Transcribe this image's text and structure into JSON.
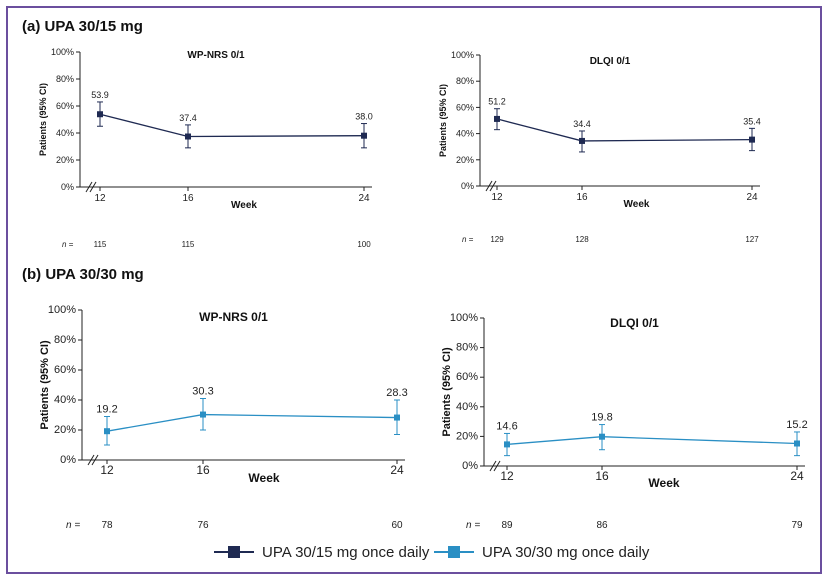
{
  "sections": [
    {
      "label": "(a) UPA 30/15 mg"
    },
    {
      "label": "(b) UPA 30/30 mg"
    }
  ],
  "colors": {
    "dark": "#1f2a52",
    "light": "#2a8fc4",
    "frame": "#6b4f9e"
  },
  "legend": [
    {
      "label": "UPA 30/15 mg once daily",
      "color": "#1f2a52"
    },
    {
      "label": "UPA 30/30 mg once daily",
      "color": "#2a8fc4"
    }
  ],
  "chart_data": [
    {
      "type": "line",
      "title": "WP-NRS 0/1",
      "xlabel": "Week",
      "ylabel": "Patients (95% CI)",
      "categories": [
        "12",
        "16",
        "24"
      ],
      "series": [
        {
          "name": "UPA 30/15 mg once daily",
          "values": [
            53.9,
            37.4,
            38.0
          ],
          "ci_low": [
            45,
            29,
            29
          ],
          "ci_high": [
            63,
            46,
            47
          ],
          "labels": [
            "53.9",
            "37.4",
            "38.0"
          ]
        }
      ],
      "ylim": [
        0,
        100
      ],
      "yticks": [
        "0%",
        "20%",
        "40%",
        "60%",
        "80%",
        "100%"
      ],
      "n_label": "n =",
      "n": [
        "115",
        "115",
        "100"
      ]
    },
    {
      "type": "line",
      "title": "DLQI 0/1",
      "xlabel": "Week",
      "ylabel": "Patients (95% CI)",
      "categories": [
        "12",
        "16",
        "24"
      ],
      "series": [
        {
          "name": "UPA 30/15 mg once daily",
          "values": [
            51.2,
            34.4,
            35.4
          ],
          "ci_low": [
            43,
            26,
            27
          ],
          "ci_high": [
            59,
            42,
            44
          ],
          "labels": [
            "51.2",
            "34.4",
            "35.4"
          ]
        }
      ],
      "ylim": [
        0,
        100
      ],
      "yticks": [
        "0%",
        "20%",
        "40%",
        "60%",
        "80%",
        "100%"
      ],
      "n_label": "n =",
      "n": [
        "129",
        "128",
        "127"
      ]
    },
    {
      "type": "line",
      "title": "WP-NRS 0/1",
      "xlabel": "Week",
      "ylabel": "Patients (95% CI)",
      "categories": [
        "12",
        "16",
        "24"
      ],
      "series": [
        {
          "name": "UPA 30/30 mg once daily",
          "values": [
            19.2,
            30.3,
            28.3
          ],
          "ci_low": [
            10,
            20,
            17
          ],
          "ci_high": [
            29,
            41,
            40
          ],
          "labels": [
            "19.2",
            "30.3",
            "28.3"
          ]
        }
      ],
      "ylim": [
        0,
        100
      ],
      "yticks": [
        "0%",
        "20%",
        "40%",
        "60%",
        "80%",
        "100%"
      ],
      "n_label": "n =",
      "n": [
        "78",
        "76",
        "60"
      ]
    },
    {
      "type": "line",
      "title": "DLQI 0/1",
      "xlabel": "Week",
      "ylabel": "Patients (95% CI)",
      "categories": [
        "12",
        "16",
        "24"
      ],
      "series": [
        {
          "name": "UPA 30/30 mg once daily",
          "values": [
            14.6,
            19.8,
            15.2
          ],
          "ci_low": [
            7,
            11,
            7
          ],
          "ci_high": [
            22,
            28,
            23
          ],
          "labels": [
            "14.6",
            "19.8",
            "15.2"
          ]
        }
      ],
      "ylim": [
        0,
        100
      ],
      "yticks": [
        "0%",
        "20%",
        "40%",
        "60%",
        "80%",
        "100%"
      ],
      "n_label": "n =",
      "n": [
        "89",
        "86",
        "79"
      ]
    }
  ]
}
